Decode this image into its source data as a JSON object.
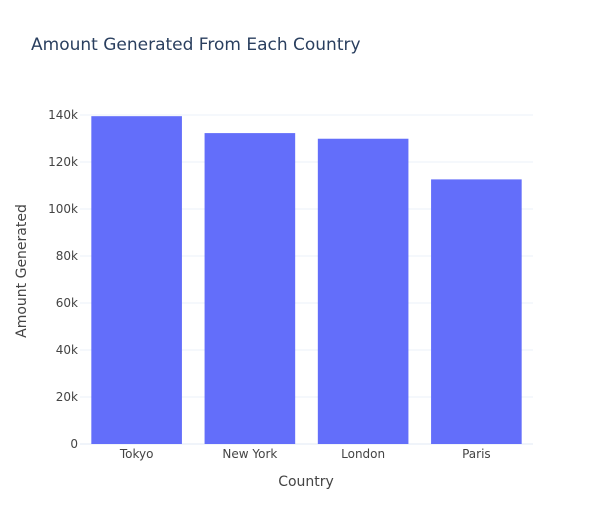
{
  "chart_data": {
    "type": "bar",
    "title": "Amount Generated From Each Country",
    "xlabel": "Country",
    "ylabel": "Amount Generated",
    "categories": [
      "Tokyo",
      "New York",
      "London",
      "Paris"
    ],
    "values": [
      139500,
      132300,
      129900,
      112600
    ],
    "ylim": [
      0,
      140000
    ],
    "yticks": [
      0,
      20000,
      40000,
      60000,
      80000,
      100000,
      120000,
      140000
    ],
    "ytick_labels": [
      "0",
      "20k",
      "40k",
      "60k",
      "80k",
      "100k",
      "120k",
      "140k"
    ],
    "grid": true,
    "legend": "none",
    "colors": {
      "bar": "#636efa",
      "grid": "#ebf0f8",
      "axis_line": "#ebf0f8",
      "text": "#444444",
      "title": "#2a3f5f"
    }
  }
}
